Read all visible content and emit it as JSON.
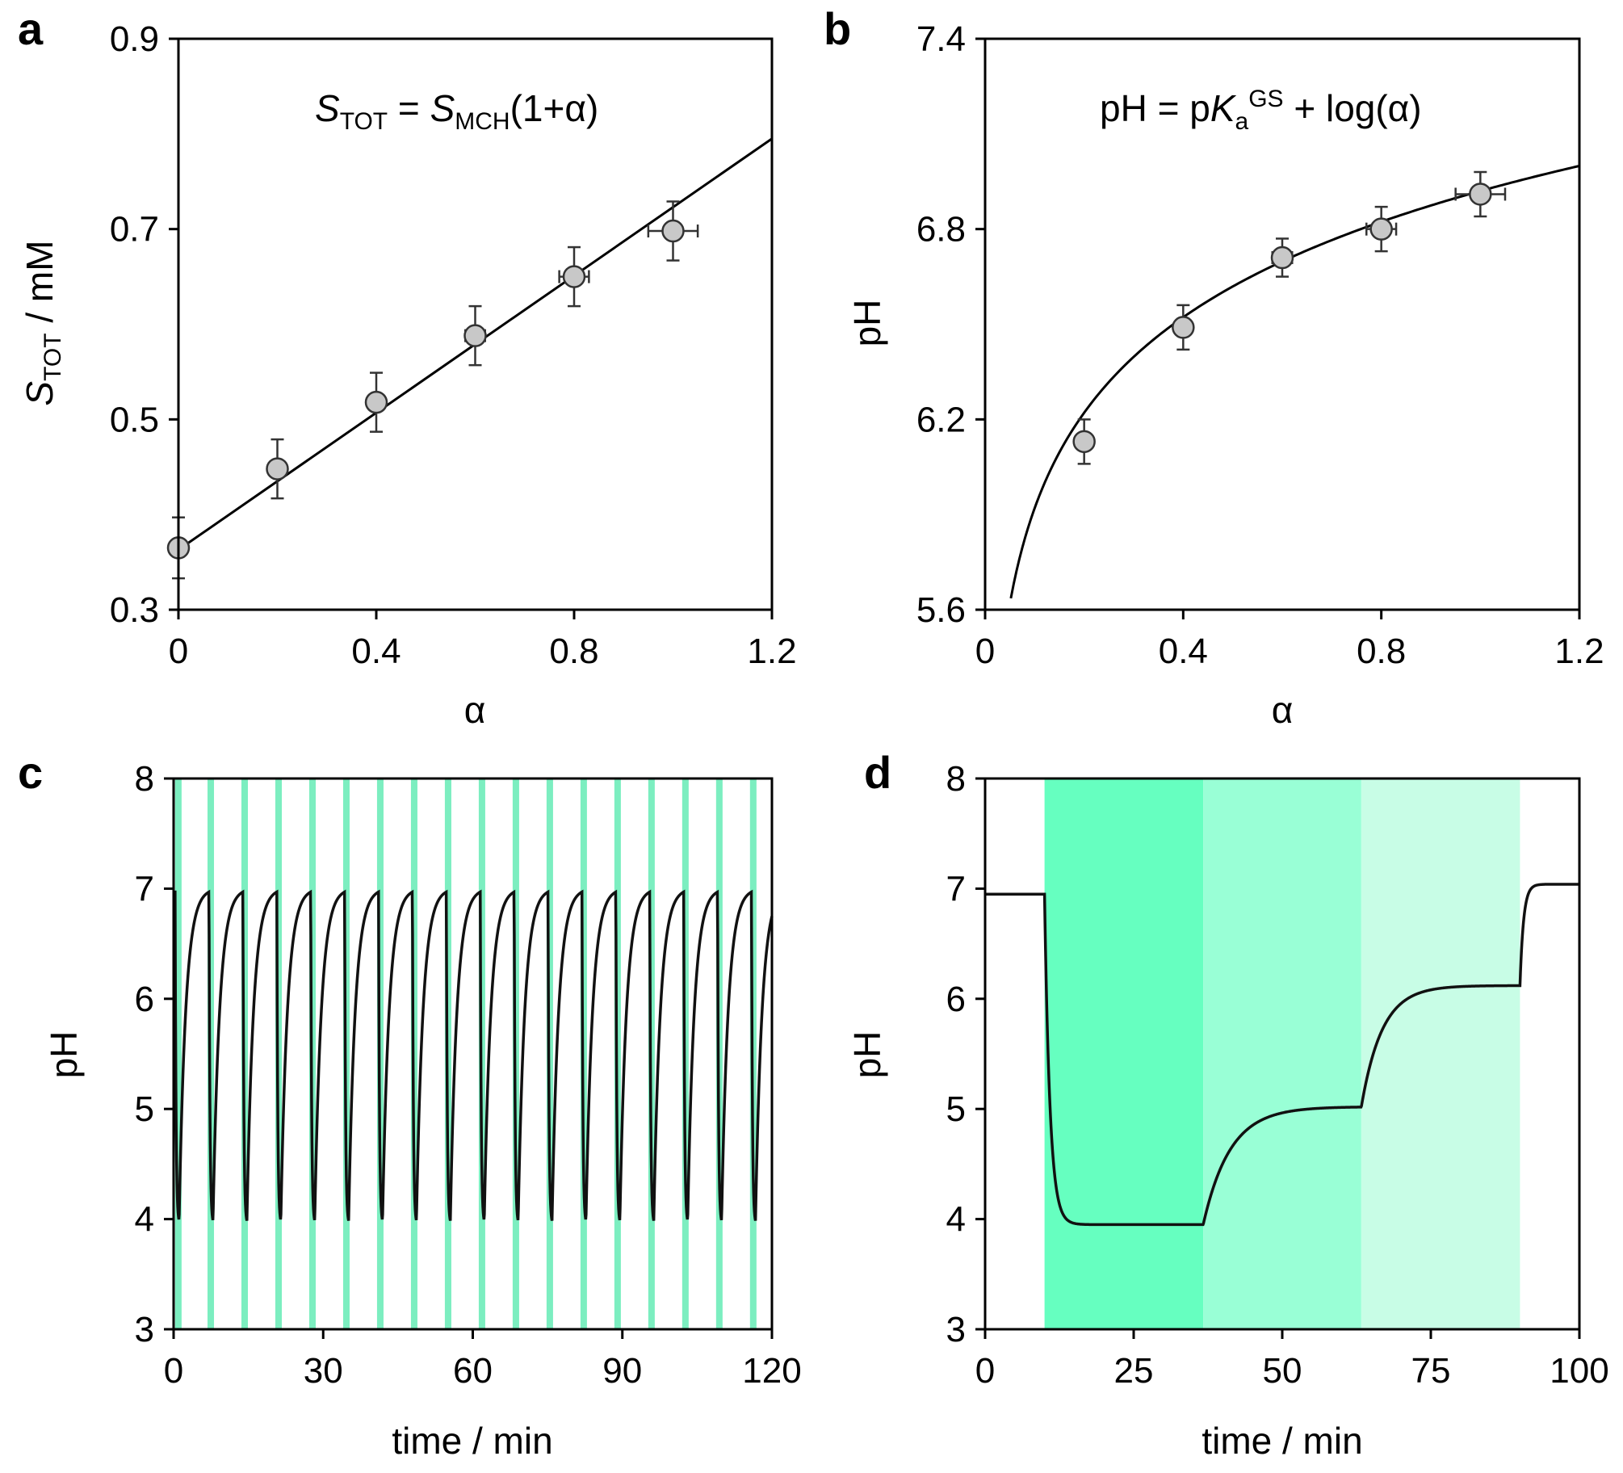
{
  "chart_data": [
    {
      "panel": "a",
      "type": "scatter",
      "equation": {
        "main": "S",
        "sub1": "TOT",
        "mid": " = ",
        "main2": "S",
        "sub2": "MCH",
        "tail": "(1+α)"
      },
      "xlabel": "α",
      "ylabel": {
        "main": "S",
        "sub": "TOT",
        "tail": " / mM"
      },
      "xlim": [
        0,
        1.2
      ],
      "ylim": [
        0.3,
        0.9
      ],
      "xticks": [
        "0",
        "0.4",
        "0.8",
        "1.2"
      ],
      "yticks": [
        "0.3",
        "0.5",
        "0.7",
        "0.9"
      ],
      "points": [
        {
          "x": 0.0,
          "y": 0.365,
          "xerr": 0.0,
          "yerr": 0.032
        },
        {
          "x": 0.2,
          "y": 0.448,
          "xerr": 0.0,
          "yerr": 0.031
        },
        {
          "x": 0.4,
          "y": 0.518,
          "xerr": 0.01,
          "yerr": 0.031
        },
        {
          "x": 0.6,
          "y": 0.588,
          "xerr": 0.02,
          "yerr": 0.031
        },
        {
          "x": 0.8,
          "y": 0.65,
          "xerr": 0.03,
          "yerr": 0.031
        },
        {
          "x": 1.0,
          "y": 0.698,
          "xerr": 0.05,
          "yerr": 0.031
        }
      ],
      "fit_line": {
        "x": [
          0,
          1.2
        ],
        "y": [
          0.363,
          0.795
        ]
      }
    },
    {
      "panel": "b",
      "type": "scatter",
      "equation": {
        "pre": "pH = p",
        "italic": "K",
        "sub": "a",
        "sup": "GS",
        "tail": " + log(α)"
      },
      "xlabel": "α",
      "ylabel": "pH",
      "xlim": [
        0,
        1.2
      ],
      "ylim": [
        5.6,
        7.4
      ],
      "xticks": [
        "0",
        "0.4",
        "0.8",
        "1.2"
      ],
      "yticks": [
        "5.6",
        "6.2",
        "6.8",
        "7.4"
      ],
      "points": [
        {
          "x": 0.2,
          "y": 6.13,
          "xerr": 0.0,
          "yerr": 0.07
        },
        {
          "x": 0.4,
          "y": 6.49,
          "xerr": 0.01,
          "yerr": 0.07
        },
        {
          "x": 0.6,
          "y": 6.71,
          "xerr": 0.02,
          "yerr": 0.06
        },
        {
          "x": 0.8,
          "y": 6.8,
          "xerr": 0.03,
          "yerr": 0.07
        },
        {
          "x": 1.0,
          "y": 6.91,
          "xerr": 0.05,
          "yerr": 0.07
        }
      ],
      "fit_curve": {
        "pKa": 6.92,
        "x_start": 0.052,
        "x_end": 1.2
      }
    },
    {
      "panel": "c",
      "type": "line",
      "xlabel": "time / min",
      "ylabel": "pH",
      "xlim": [
        0,
        120
      ],
      "ylim": [
        3,
        8
      ],
      "xticks": [
        "0",
        "30",
        "60",
        "90",
        "120"
      ],
      "yticks": [
        "3",
        "4",
        "5",
        "6",
        "7",
        "8"
      ],
      "light_color": "#7ceec0",
      "light_pulses": [
        [
          0.3,
          1.6
        ],
        [
          6.8,
          8.1
        ],
        [
          13.6,
          14.9
        ],
        [
          20.4,
          21.7
        ],
        [
          27.2,
          28.5
        ],
        [
          34.0,
          35.3
        ],
        [
          40.8,
          42.1
        ],
        [
          47.6,
          48.9
        ],
        [
          54.4,
          55.7
        ],
        [
          61.2,
          62.5
        ],
        [
          68.0,
          69.3
        ],
        [
          74.8,
          76.1
        ],
        [
          81.6,
          82.9
        ],
        [
          88.4,
          89.7
        ],
        [
          95.2,
          96.5
        ],
        [
          102.0,
          103.3
        ],
        [
          108.8,
          110.1
        ],
        [
          115.6,
          116.9
        ]
      ],
      "oscillation": {
        "period": 6.8,
        "high": 6.97,
        "low": 3.95
      }
    },
    {
      "panel": "d",
      "type": "line",
      "xlabel": "time / min",
      "ylabel": "pH",
      "xlim": [
        0,
        100
      ],
      "ylim": [
        3,
        8
      ],
      "xticks": [
        "0",
        "25",
        "50",
        "75",
        "100"
      ],
      "yticks": [
        "3",
        "4",
        "5",
        "6",
        "7",
        "8"
      ],
      "light_bands": [
        {
          "x": [
            10,
            36.7
          ],
          "color": "#66ffc0"
        },
        {
          "x": [
            36.7,
            63.3
          ],
          "color": "#99ffd6"
        },
        {
          "x": [
            63.3,
            90
          ],
          "color": "#c8fde6"
        }
      ],
      "levels": [
        6.95,
        3.95,
        5.02,
        6.12,
        7.04
      ]
    }
  ],
  "panel_letters": [
    "a",
    "b",
    "c",
    "d"
  ]
}
